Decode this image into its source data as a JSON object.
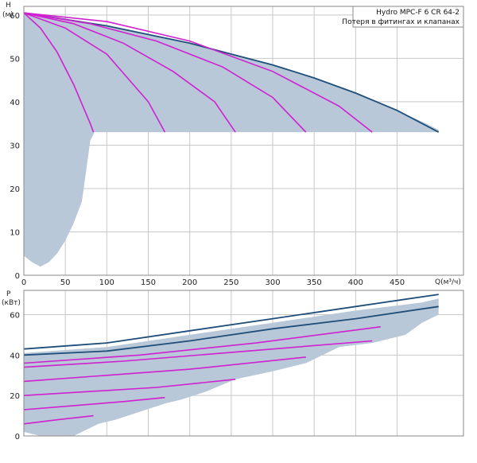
{
  "legend": {
    "line1": "Hydro MPC-F 6 CR 64-2",
    "line2": "Потеря в фитингах и клапанах"
  },
  "chart_data": [
    {
      "type": "line",
      "ylabel_line1": "H",
      "ylabel_line2": "(м)",
      "xlabel": "Q(м³/ч)",
      "xlim": [
        0,
        530
      ],
      "ylim": [
        0,
        62
      ],
      "xticks": [
        0,
        50,
        100,
        150,
        200,
        250,
        300,
        350,
        400,
        450
      ],
      "yticks": [
        0,
        10,
        20,
        30,
        40,
        50,
        60
      ],
      "grid": true,
      "envelope_shade": [
        [
          0,
          60.5
        ],
        [
          50,
          59
        ],
        [
          100,
          57.5
        ],
        [
          150,
          55.5
        ],
        [
          200,
          53.5
        ],
        [
          250,
          51
        ],
        [
          300,
          48.5
        ],
        [
          350,
          45.5
        ],
        [
          400,
          42
        ],
        [
          450,
          38
        ],
        [
          485,
          35
        ],
        [
          500,
          33.5
        ],
        [
          500,
          33
        ],
        [
          420,
          33
        ],
        [
          340,
          33
        ],
        [
          255,
          33
        ],
        [
          170,
          33
        ],
        [
          85,
          33
        ],
        [
          80,
          31
        ],
        [
          75,
          24
        ],
        [
          70,
          17
        ],
        [
          60,
          12
        ],
        [
          50,
          8
        ],
        [
          40,
          5
        ],
        [
          30,
          3
        ],
        [
          20,
          2
        ],
        [
          10,
          3
        ],
        [
          0,
          4.5
        ]
      ],
      "series": [
        {
          "values": [
            [
              0,
              60.5
            ],
            [
              50,
              59
            ],
            [
              100,
              57.5
            ],
            [
              150,
              55.5
            ],
            [
              200,
              53.5
            ],
            [
              250,
              51
            ],
            [
              300,
              48.5
            ],
            [
              350,
              45.5
            ],
            [
              400,
              42
            ],
            [
              450,
              38
            ],
            [
              500,
              33
            ]
          ]
        },
        {
          "values": [
            [
              0,
              60.5
            ],
            [
              20,
              57
            ],
            [
              40,
              51.5
            ],
            [
              60,
              44
            ],
            [
              80,
              35
            ],
            [
              84,
              33
            ]
          ]
        },
        {
          "values": [
            [
              0,
              60.5
            ],
            [
              50,
              57
            ],
            [
              100,
              51
            ],
            [
              150,
              40
            ],
            [
              170,
              33
            ]
          ]
        },
        {
          "values": [
            [
              0,
              60.5
            ],
            [
              60,
              58
            ],
            [
              120,
              53.5
            ],
            [
              180,
              47
            ],
            [
              230,
              40
            ],
            [
              255,
              33
            ]
          ]
        },
        {
          "values": [
            [
              0,
              60.5
            ],
            [
              80,
              58
            ],
            [
              160,
              54
            ],
            [
              240,
              48
            ],
            [
              300,
              41
            ],
            [
              340,
              33
            ]
          ]
        },
        {
          "values": [
            [
              0,
              60.5
            ],
            [
              100,
              58.5
            ],
            [
              200,
              54
            ],
            [
              300,
              47
            ],
            [
              380,
              39
            ],
            [
              420,
              33
            ]
          ]
        }
      ]
    },
    {
      "type": "line",
      "ylabel_line1": "P",
      "ylabel_line2": "(кВт)",
      "xlim": [
        0,
        530
      ],
      "ylim": [
        0,
        72
      ],
      "yticks": [
        0,
        20,
        40,
        60
      ],
      "grid": true,
      "envelope_shade": [
        [
          0,
          41
        ],
        [
          100,
          44
        ],
        [
          200,
          50
        ],
        [
          300,
          56
        ],
        [
          400,
          62
        ],
        [
          480,
          66
        ],
        [
          500,
          68
        ],
        [
          500,
          60
        ],
        [
          480,
          56
        ],
        [
          460,
          50
        ],
        [
          420,
          46
        ],
        [
          380,
          44
        ],
        [
          340,
          36
        ],
        [
          300,
          32
        ],
        [
          255,
          28
        ],
        [
          220,
          22
        ],
        [
          190,
          18
        ],
        [
          170,
          16
        ],
        [
          140,
          12
        ],
        [
          110,
          8
        ],
        [
          90,
          6
        ],
        [
          60,
          0
        ],
        [
          20,
          0
        ],
        [
          0,
          2
        ]
      ],
      "series": [
        {
          "values": [
            [
              0,
              43
            ],
            [
              100,
              46
            ],
            [
              200,
              52
            ],
            [
              300,
              58
            ],
            [
              400,
              64
            ],
            [
              500,
              70
            ]
          ]
        },
        {
          "values": [
            [
              0,
              40
            ],
            [
              100,
              42
            ],
            [
              200,
              47
            ],
            [
              300,
              53
            ],
            [
              400,
              58
            ],
            [
              500,
              64
            ]
          ]
        },
        {
          "values": [
            [
              0,
              6
            ],
            [
              40,
              8
            ],
            [
              84,
              10
            ]
          ]
        },
        {
          "values": [
            [
              0,
              13
            ],
            [
              60,
              15
            ],
            [
              120,
              17
            ],
            [
              170,
              19
            ]
          ]
        },
        {
          "values": [
            [
              0,
              20
            ],
            [
              80,
              22
            ],
            [
              160,
              24
            ],
            [
              255,
              28
            ]
          ]
        },
        {
          "values": [
            [
              0,
              27
            ],
            [
              100,
              30
            ],
            [
              200,
              33
            ],
            [
              340,
              39
            ]
          ]
        },
        {
          "values": [
            [
              0,
              34
            ],
            [
              120,
              37
            ],
            [
              240,
              41
            ],
            [
              420,
              47
            ]
          ]
        },
        {
          "values": [
            [
              0,
              36
            ],
            [
              140,
              40
            ],
            [
              280,
              46
            ],
            [
              430,
              54
            ]
          ]
        }
      ]
    }
  ],
  "colors": {
    "envelope_fill": "#b8c8d8",
    "envelope_line": "#1f4e7a",
    "curve": "#d020d0"
  }
}
